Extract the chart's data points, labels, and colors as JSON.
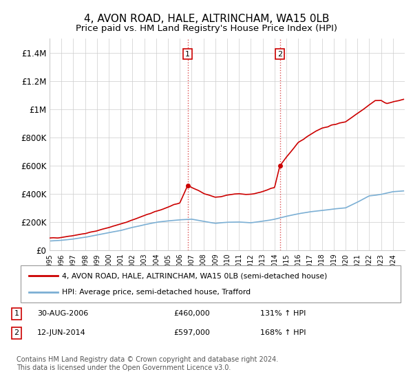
{
  "title": "4, AVON ROAD, HALE, ALTRINCHAM, WA15 0LB",
  "subtitle": "Price paid vs. HM Land Registry's House Price Index (HPI)",
  "property_color": "#cc0000",
  "hpi_color": "#7bafd4",
  "vline_color": "#cc0000",
  "grid_color": "#cccccc",
  "background_color": "#ffffff",
  "legend_label_property": "4, AVON ROAD, HALE, ALTRINCHAM, WA15 0LB (semi-detached house)",
  "legend_label_hpi": "HPI: Average price, semi-detached house, Trafford",
  "sale1_date": "30-AUG-2006",
  "sale1_price": "£460,000",
  "sale1_hpi": "131% ↑ HPI",
  "sale1_year": 2006.67,
  "sale1_value": 460000,
  "sale2_date": "12-JUN-2014",
  "sale2_price": "£597,000",
  "sale2_hpi": "168% ↑ HPI",
  "sale2_year": 2014.45,
  "sale2_value": 597000,
  "footnote": "Contains HM Land Registry data © Crown copyright and database right 2024.\nThis data is licensed under the Open Government Licence v3.0.",
  "ylim": [
    0,
    1500000
  ],
  "yticks": [
    0,
    200000,
    400000,
    600000,
    800000,
    1000000,
    1200000,
    1400000
  ],
  "ytick_labels": [
    "£0",
    "£200K",
    "£400K",
    "£600K",
    "£800K",
    "£1M",
    "£1.2M",
    "£1.4M"
  ],
  "xmin": 1995,
  "xmax": 2025
}
